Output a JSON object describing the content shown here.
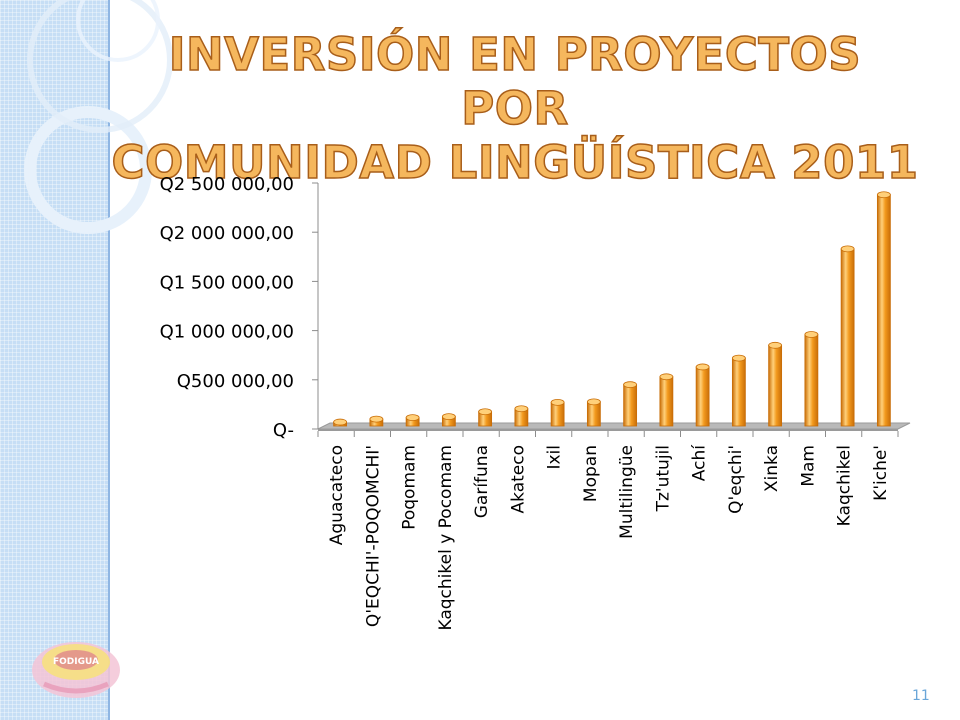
{
  "slide": {
    "title_line1": "INVERSIÓN EN PROYECTOS POR",
    "title_line2": "COMUNIDAD LINGÜÍSTICA 2011",
    "page_number": "11",
    "logo_text": "FODIGUA"
  },
  "colors": {
    "title_fill": "#f5b75d",
    "title_stroke": "#a85e1a",
    "bar_main": "#f39a1e",
    "bar_dark": "#c96e08",
    "bar_light": "#ffd07a",
    "sidebar": "#c6def5"
  },
  "chart_data": {
    "type": "bar",
    "title": "",
    "xlabel": "",
    "ylabel": "",
    "categories": [
      "Aguacateco",
      "Q'EQCHI'-POQOMCHI'",
      "Poqomam",
      "Kaqchikel y Pocomam",
      "Garífuna",
      "Akateco",
      "Ixil",
      "Mopan",
      "Multilingüe",
      "Tz'utujil",
      "Achí",
      "Q'eqchi'",
      "Xinka",
      "Mam",
      "Kaqchikel",
      "K'iche'"
    ],
    "values": [
      40000,
      70000,
      85000,
      95000,
      145000,
      175000,
      240000,
      245000,
      420000,
      500000,
      600000,
      690000,
      820000,
      930000,
      1800000,
      2350000
    ],
    "ylim": [
      0,
      2500000
    ],
    "yticks": [
      0,
      500000,
      1000000,
      1500000,
      2000000,
      2500000
    ],
    "ytick_labels": [
      "Q-",
      "Q500 000,00",
      "Q1 000 000,00",
      "Q1 500 000,00",
      "Q2 000 000,00",
      "Q2 500 000,00"
    ],
    "grid": false,
    "legend": "none"
  }
}
